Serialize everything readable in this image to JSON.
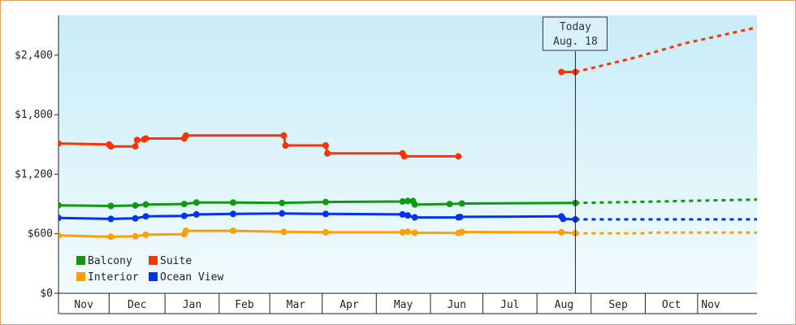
{
  "chart_data": {
    "type": "line",
    "title": "",
    "xlabel": "",
    "ylabel": "",
    "ylim": [
      0,
      2800
    ],
    "y_ticks": [
      {
        "value": 0,
        "label": "$0"
      },
      {
        "value": 600,
        "label": "$600"
      },
      {
        "value": 1200,
        "label": "$1,200"
      },
      {
        "value": 1800,
        "label": "$1,800"
      },
      {
        "value": 2400,
        "label": "$2,400"
      }
    ],
    "x_range": [
      "2023-10-27",
      "2024-11-30"
    ],
    "months": [
      {
        "label": "Nov",
        "start": "2023-10-27",
        "end": "2023-11-25"
      },
      {
        "label": "Dec",
        "start": "2023-11-25",
        "end": "2023-12-27"
      },
      {
        "label": "Jan",
        "start": "2023-12-27",
        "end": "2024-01-27"
      },
      {
        "label": "Feb",
        "start": "2024-01-27",
        "end": "2024-02-25"
      },
      {
        "label": "Mar",
        "start": "2024-02-25",
        "end": "2024-03-26"
      },
      {
        "label": "Apr",
        "start": "2024-03-26",
        "end": "2024-04-26"
      },
      {
        "label": "May",
        "start": "2024-04-26",
        "end": "2024-05-27"
      },
      {
        "label": "Jun",
        "start": "2024-05-27",
        "end": "2024-06-26"
      },
      {
        "label": "Jul",
        "start": "2024-06-26",
        "end": "2024-07-27"
      },
      {
        "label": "Aug",
        "start": "2024-07-27",
        "end": "2024-08-27"
      },
      {
        "label": "Sep",
        "start": "2024-08-27",
        "end": "2024-09-27"
      },
      {
        "label": "Oct",
        "start": "2024-09-27",
        "end": "2024-10-27"
      },
      {
        "label": "Nov",
        "start": "2024-10-27",
        "end": "2024-11-11"
      }
    ],
    "today": {
      "date": "2024-08-18",
      "label_line1": "Today",
      "label_line2": "Aug. 18"
    },
    "legend_position": "bottom-left",
    "colors": {
      "background_top": "#c8ecf8",
      "background_bottom": "#f2fbfe",
      "Balcony": "#119911",
      "Suite": "#ff3300",
      "Interior": "#ffa000",
      "Ocean View": "#0033ee"
    },
    "series": [
      {
        "name": "Balcony",
        "points": [
          {
            "x": "2023-10-27",
            "y": 887
          },
          {
            "x": "2023-11-26",
            "y": 880
          },
          {
            "x": "2023-12-10",
            "y": 885
          },
          {
            "x": "2023-12-16",
            "y": 895
          },
          {
            "x": "2024-01-07",
            "y": 900
          },
          {
            "x": "2024-01-14",
            "y": 915
          },
          {
            "x": "2024-02-04",
            "y": 915
          },
          {
            "x": "2024-03-03",
            "y": 910
          },
          {
            "x": "2024-03-28",
            "y": 920
          },
          {
            "x": "2024-05-11",
            "y": 925
          },
          {
            "x": "2024-05-14",
            "y": 930
          },
          {
            "x": "2024-05-17",
            "y": 930
          },
          {
            "x": "2024-05-18",
            "y": 895
          },
          {
            "x": "2024-06-07",
            "y": 900
          },
          {
            "x": "2024-06-14",
            "y": 905
          },
          {
            "x": "2024-08-18",
            "y": 910
          }
        ],
        "forecast": [
          {
            "x": "2024-08-18",
            "y": 910
          },
          {
            "x": "2024-09-20",
            "y": 920
          },
          {
            "x": "2024-10-18",
            "y": 930
          },
          {
            "x": "2024-11-30",
            "y": 945
          }
        ]
      },
      {
        "name": "Suite",
        "points": [
          {
            "x": "2023-10-27",
            "y": 1510
          },
          {
            "x": "2023-11-25",
            "y": 1500
          },
          {
            "x": "2023-11-26",
            "y": 1480
          },
          {
            "x": "2023-12-10",
            "y": 1480
          },
          {
            "x": "2023-12-11",
            "y": 1545
          },
          {
            "x": "2023-12-15",
            "y": 1550
          },
          {
            "x": "2023-12-16",
            "y": 1560
          },
          {
            "x": "2024-01-07",
            "y": 1560
          },
          {
            "x": "2024-01-08",
            "y": 1590
          },
          {
            "x": "2024-03-04",
            "y": 1590
          },
          {
            "x": "2024-03-05",
            "y": 1490
          },
          {
            "x": "2024-03-28",
            "y": 1490
          },
          {
            "x": "2024-03-29",
            "y": 1410
          },
          {
            "x": "2024-05-11",
            "y": 1410
          },
          {
            "x": "2024-05-12",
            "y": 1380
          },
          {
            "x": "2024-06-12",
            "y": 1380
          }
        ],
        "points_recent": [
          {
            "x": "2024-08-10",
            "y": 2230
          },
          {
            "x": "2024-08-18",
            "y": 2230
          }
        ],
        "forecast": [
          {
            "x": "2024-08-18",
            "y": 2230
          },
          {
            "x": "2024-09-20",
            "y": 2370
          },
          {
            "x": "2024-10-20",
            "y": 2520
          },
          {
            "x": "2024-11-30",
            "y": 2680
          }
        ]
      },
      {
        "name": "Interior",
        "points": [
          {
            "x": "2023-10-27",
            "y": 583
          },
          {
            "x": "2023-11-26",
            "y": 570
          },
          {
            "x": "2023-12-10",
            "y": 575
          },
          {
            "x": "2023-12-16",
            "y": 590
          },
          {
            "x": "2024-01-07",
            "y": 595
          },
          {
            "x": "2024-01-08",
            "y": 630
          },
          {
            "x": "2024-02-04",
            "y": 630
          },
          {
            "x": "2024-03-04",
            "y": 620
          },
          {
            "x": "2024-03-28",
            "y": 615
          },
          {
            "x": "2024-05-11",
            "y": 615
          },
          {
            "x": "2024-05-14",
            "y": 622
          },
          {
            "x": "2024-05-18",
            "y": 610
          },
          {
            "x": "2024-06-12",
            "y": 608
          },
          {
            "x": "2024-06-14",
            "y": 618
          },
          {
            "x": "2024-08-10",
            "y": 615
          },
          {
            "x": "2024-08-18",
            "y": 605
          }
        ],
        "forecast": [
          {
            "x": "2024-08-18",
            "y": 605
          },
          {
            "x": "2024-09-27",
            "y": 605
          },
          {
            "x": "2024-10-01",
            "y": 612
          },
          {
            "x": "2024-11-30",
            "y": 612
          }
        ]
      },
      {
        "name": "Ocean View",
        "points": [
          {
            "x": "2023-10-27",
            "y": 760
          },
          {
            "x": "2023-11-26",
            "y": 750
          },
          {
            "x": "2023-12-10",
            "y": 755
          },
          {
            "x": "2023-12-16",
            "y": 775
          },
          {
            "x": "2024-01-07",
            "y": 780
          },
          {
            "x": "2024-01-14",
            "y": 795
          },
          {
            "x": "2024-02-04",
            "y": 800
          },
          {
            "x": "2024-03-03",
            "y": 805
          },
          {
            "x": "2024-03-28",
            "y": 800
          },
          {
            "x": "2024-05-11",
            "y": 795
          },
          {
            "x": "2024-05-14",
            "y": 785
          },
          {
            "x": "2024-05-18",
            "y": 765
          },
          {
            "x": "2024-06-12",
            "y": 765
          },
          {
            "x": "2024-06-13",
            "y": 770
          },
          {
            "x": "2024-08-10",
            "y": 775
          },
          {
            "x": "2024-08-11",
            "y": 750
          },
          {
            "x": "2024-08-18",
            "y": 745
          }
        ],
        "forecast": [
          {
            "x": "2024-08-18",
            "y": 745
          },
          {
            "x": "2024-11-30",
            "y": 745
          }
        ]
      }
    ],
    "legend": [
      {
        "name": "Balcony",
        "color": "#119911"
      },
      {
        "name": "Suite",
        "color": "#ff3300"
      },
      {
        "name": "Interior",
        "color": "#ffa000"
      },
      {
        "name": "Ocean View",
        "color": "#0033ee"
      }
    ]
  }
}
